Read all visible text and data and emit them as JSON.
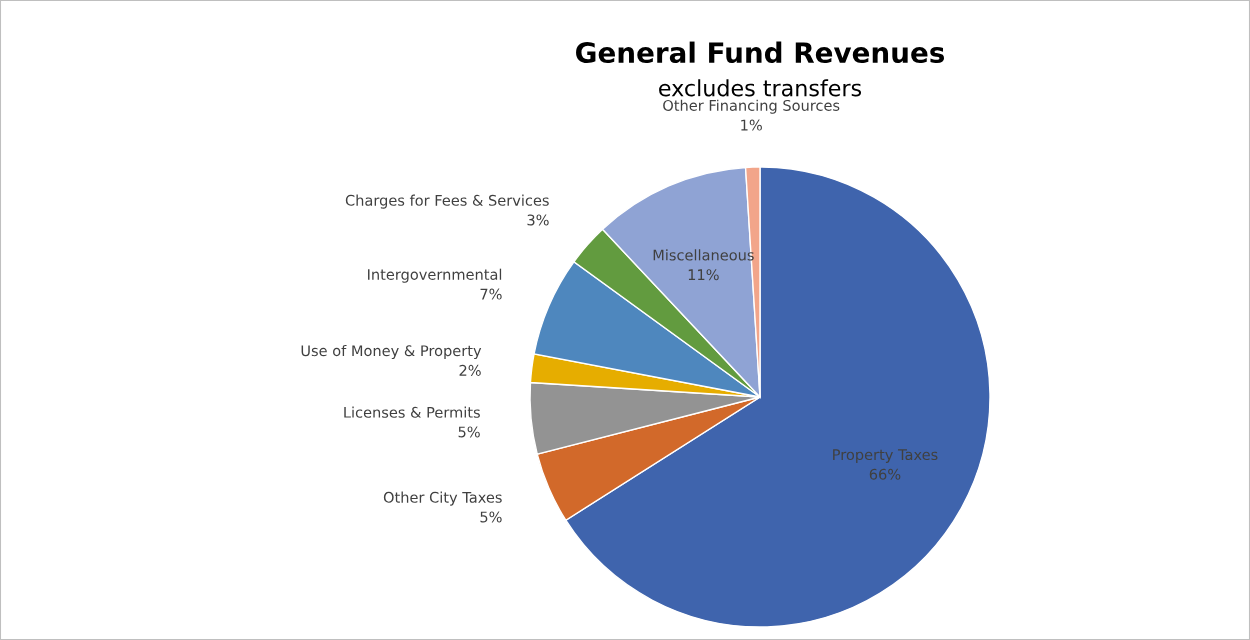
{
  "chart_data": {
    "type": "pie",
    "title": "General Fund Revenues",
    "subtitle": "excludes transfers",
    "categories": [
      "Property Taxes",
      "Other City Taxes",
      "Licenses & Permits",
      "Use of Money & Property",
      "Intergovernmental",
      "Charges for Fees & Services",
      "Miscellaneous",
      "Other Financing Sources"
    ],
    "values": [
      66,
      5,
      5,
      2,
      7,
      3,
      11,
      1
    ],
    "value_labels": [
      "66%",
      "5%",
      "5%",
      "2%",
      "7%",
      "3%",
      "11%",
      "1%"
    ],
    "colors": [
      "#3f64ad",
      "#d2692a",
      "#939393",
      "#e6ad00",
      "#4e87be",
      "#629b3f",
      "#8fa3d4",
      "#f2a58a"
    ],
    "legend": false
  }
}
